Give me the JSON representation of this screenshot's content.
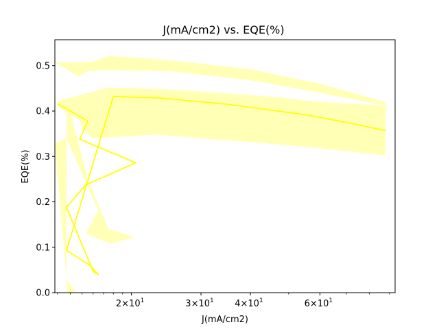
{
  "chart_data": {
    "type": "line",
    "title": "J(mA/cm2) vs. EQE(%)",
    "xlabel": "J(mA/cm2)",
    "ylabel": "EQE(%)",
    "xscale": "log",
    "xlim": [
      12.8,
      93
    ],
    "ylim": [
      0,
      0.557
    ],
    "x_ticks": [
      {
        "value": 20,
        "base": "2×10",
        "exp": "1"
      },
      {
        "value": 30,
        "base": "3×10",
        "exp": "1"
      },
      {
        "value": 40,
        "base": "4×10",
        "exp": "1"
      },
      {
        "value": 60,
        "base": "6×10",
        "exp": "1"
      }
    ],
    "y_ticks": [
      "0.0",
      "0.1",
      "0.2",
      "0.3",
      "0.4",
      "0.5"
    ],
    "series": [
      {
        "name": "EQE",
        "color": "#ffff00",
        "x": [
          13.0,
          15.5,
          14.8,
          20.5,
          15.3,
          13.7,
          16.0,
          16.5,
          15.7,
          13.7,
          18.0,
          23.5,
          35.0,
          55.0,
          70.0,
          88.0
        ],
        "y": [
          0.416,
          0.378,
          0.338,
          0.286,
          0.237,
          0.188,
          0.047,
          0.04,
          0.06,
          0.093,
          0.432,
          0.429,
          0.415,
          0.392,
          0.375,
          0.357
        ]
      }
    ],
    "band": {
      "color": "#ffffb2",
      "polygons": [
        {
          "x": [
            13.0,
            17.5,
            23.0,
            30.0,
            45.0,
            60.0,
            88.0,
            88.0,
            60.0,
            40.0,
            23.0,
            16.0,
            15.0,
            14.8,
            13.0
          ],
          "y": [
            0.422,
            0.452,
            0.449,
            0.443,
            0.432,
            0.42,
            0.412,
            0.302,
            0.318,
            0.332,
            0.348,
            0.34,
            0.362,
            0.38,
            0.41
          ]
        },
        {
          "x": [
            12.8,
            15.9,
            17.5,
            25.0,
            40.0,
            60.0,
            88.0,
            88.0,
            60.0,
            40.0,
            25.0,
            17.5,
            15.5,
            14.7
          ],
          "y": [
            0.507,
            0.508,
            0.521,
            0.512,
            0.492,
            0.46,
            0.42,
            0.412,
            0.44,
            0.468,
            0.488,
            0.49,
            0.488,
            0.476
          ]
        },
        {
          "x": [
            12.8,
            13.7,
            16.5,
            15.3,
            17.7,
            20.5,
            17.5,
            15.5,
            13.7,
            13.7,
            14.5,
            13.7
          ],
          "y": [
            0.328,
            0.34,
            0.18,
            0.13,
            0.108,
            0.122,
            0.14,
            0.25,
            0.43,
            0.0,
            0.0,
            0.03
          ]
        }
      ]
    }
  }
}
